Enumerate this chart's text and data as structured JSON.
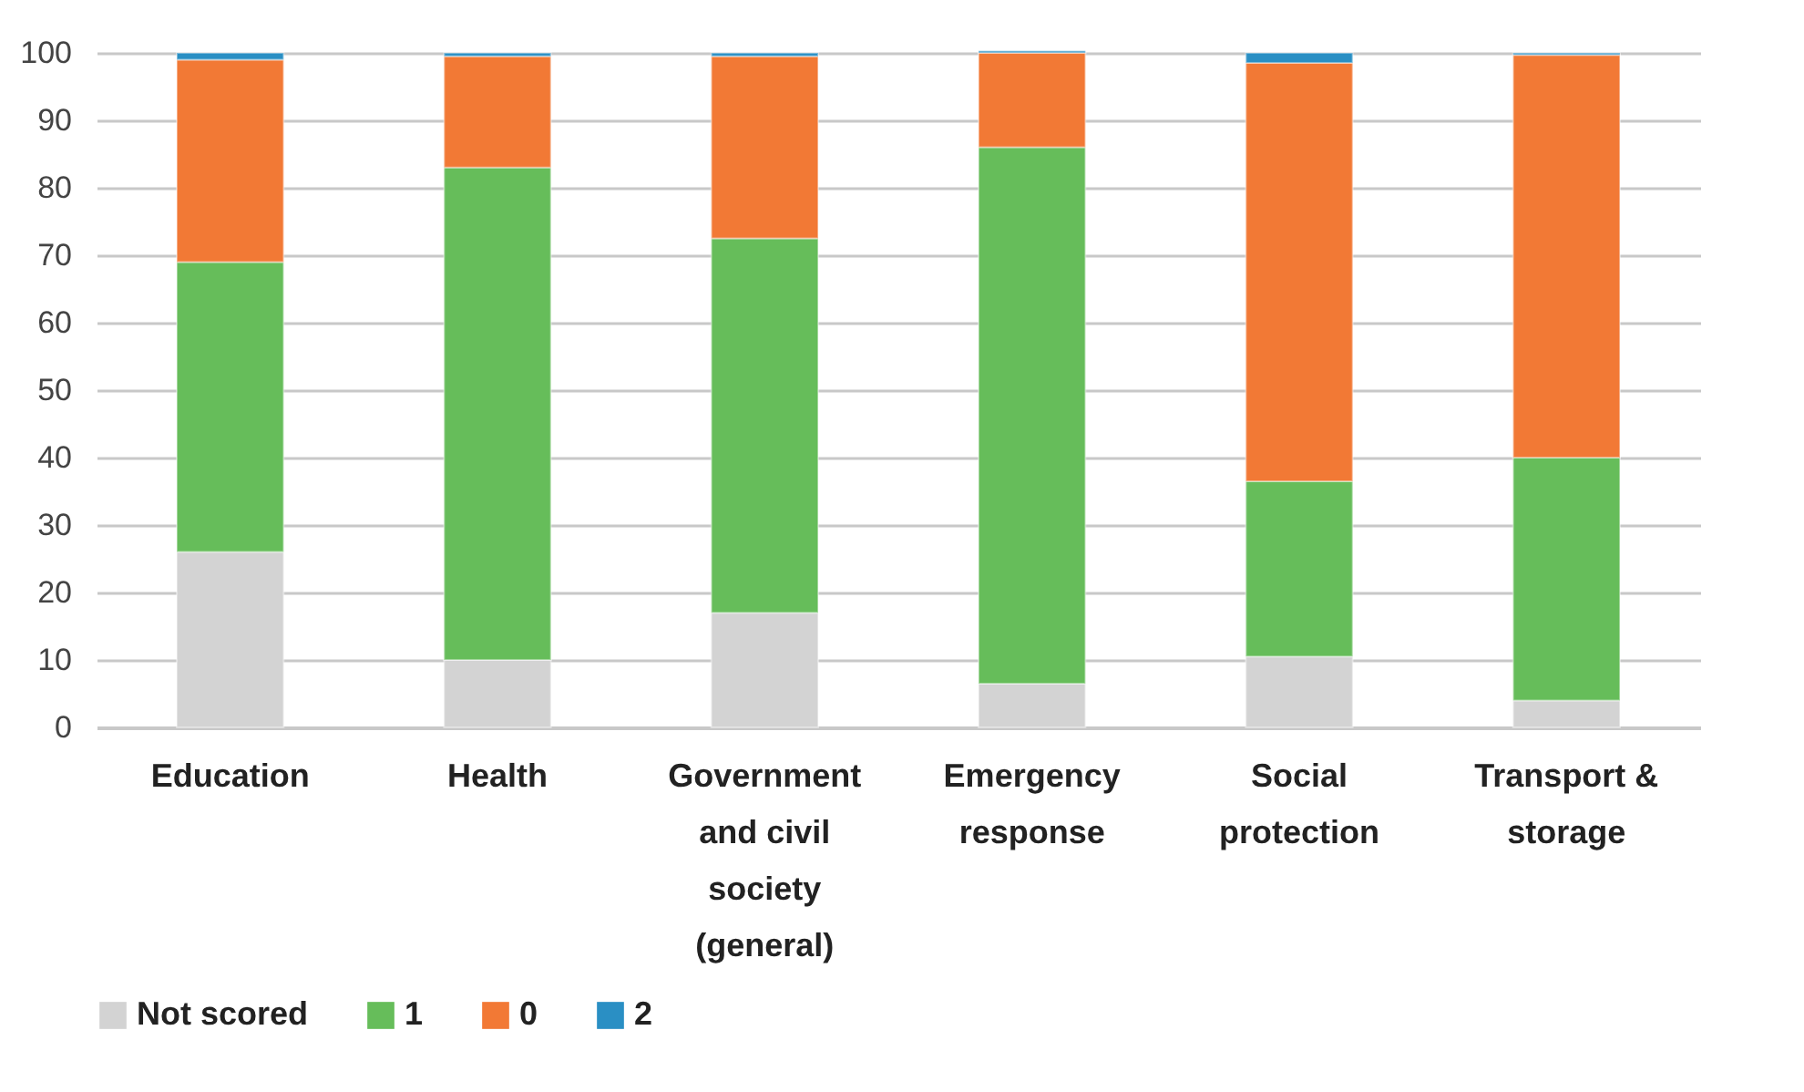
{
  "chart_data": {
    "type": "bar",
    "stacked": true,
    "categories": [
      "Education",
      "Health",
      "Government and civil society (general)",
      "Emergency response",
      "Social protection",
      "Transport & storage"
    ],
    "series": [
      {
        "name": "Not scored",
        "color": "#d3d3d3",
        "values": [
          26,
          10,
          17,
          6.5,
          10.5,
          4
        ]
      },
      {
        "name": "1",
        "color": "#66bd5a",
        "values": [
          43,
          73,
          55.5,
          79.5,
          26,
          36
        ]
      },
      {
        "name": "0",
        "color": "#f27935",
        "values": [
          30,
          16.5,
          27,
          14,
          62,
          59.7
        ]
      },
      {
        "name": "2",
        "color": "#2a8fc4",
        "values": [
          1,
          0.5,
          0.5,
          0.3,
          1.5,
          0.3
        ]
      }
    ],
    "ylim": [
      0,
      100
    ],
    "yticks": [
      0,
      10,
      20,
      30,
      40,
      50,
      60,
      70,
      80,
      90,
      100
    ],
    "grid": "y",
    "legend": "bottom"
  }
}
